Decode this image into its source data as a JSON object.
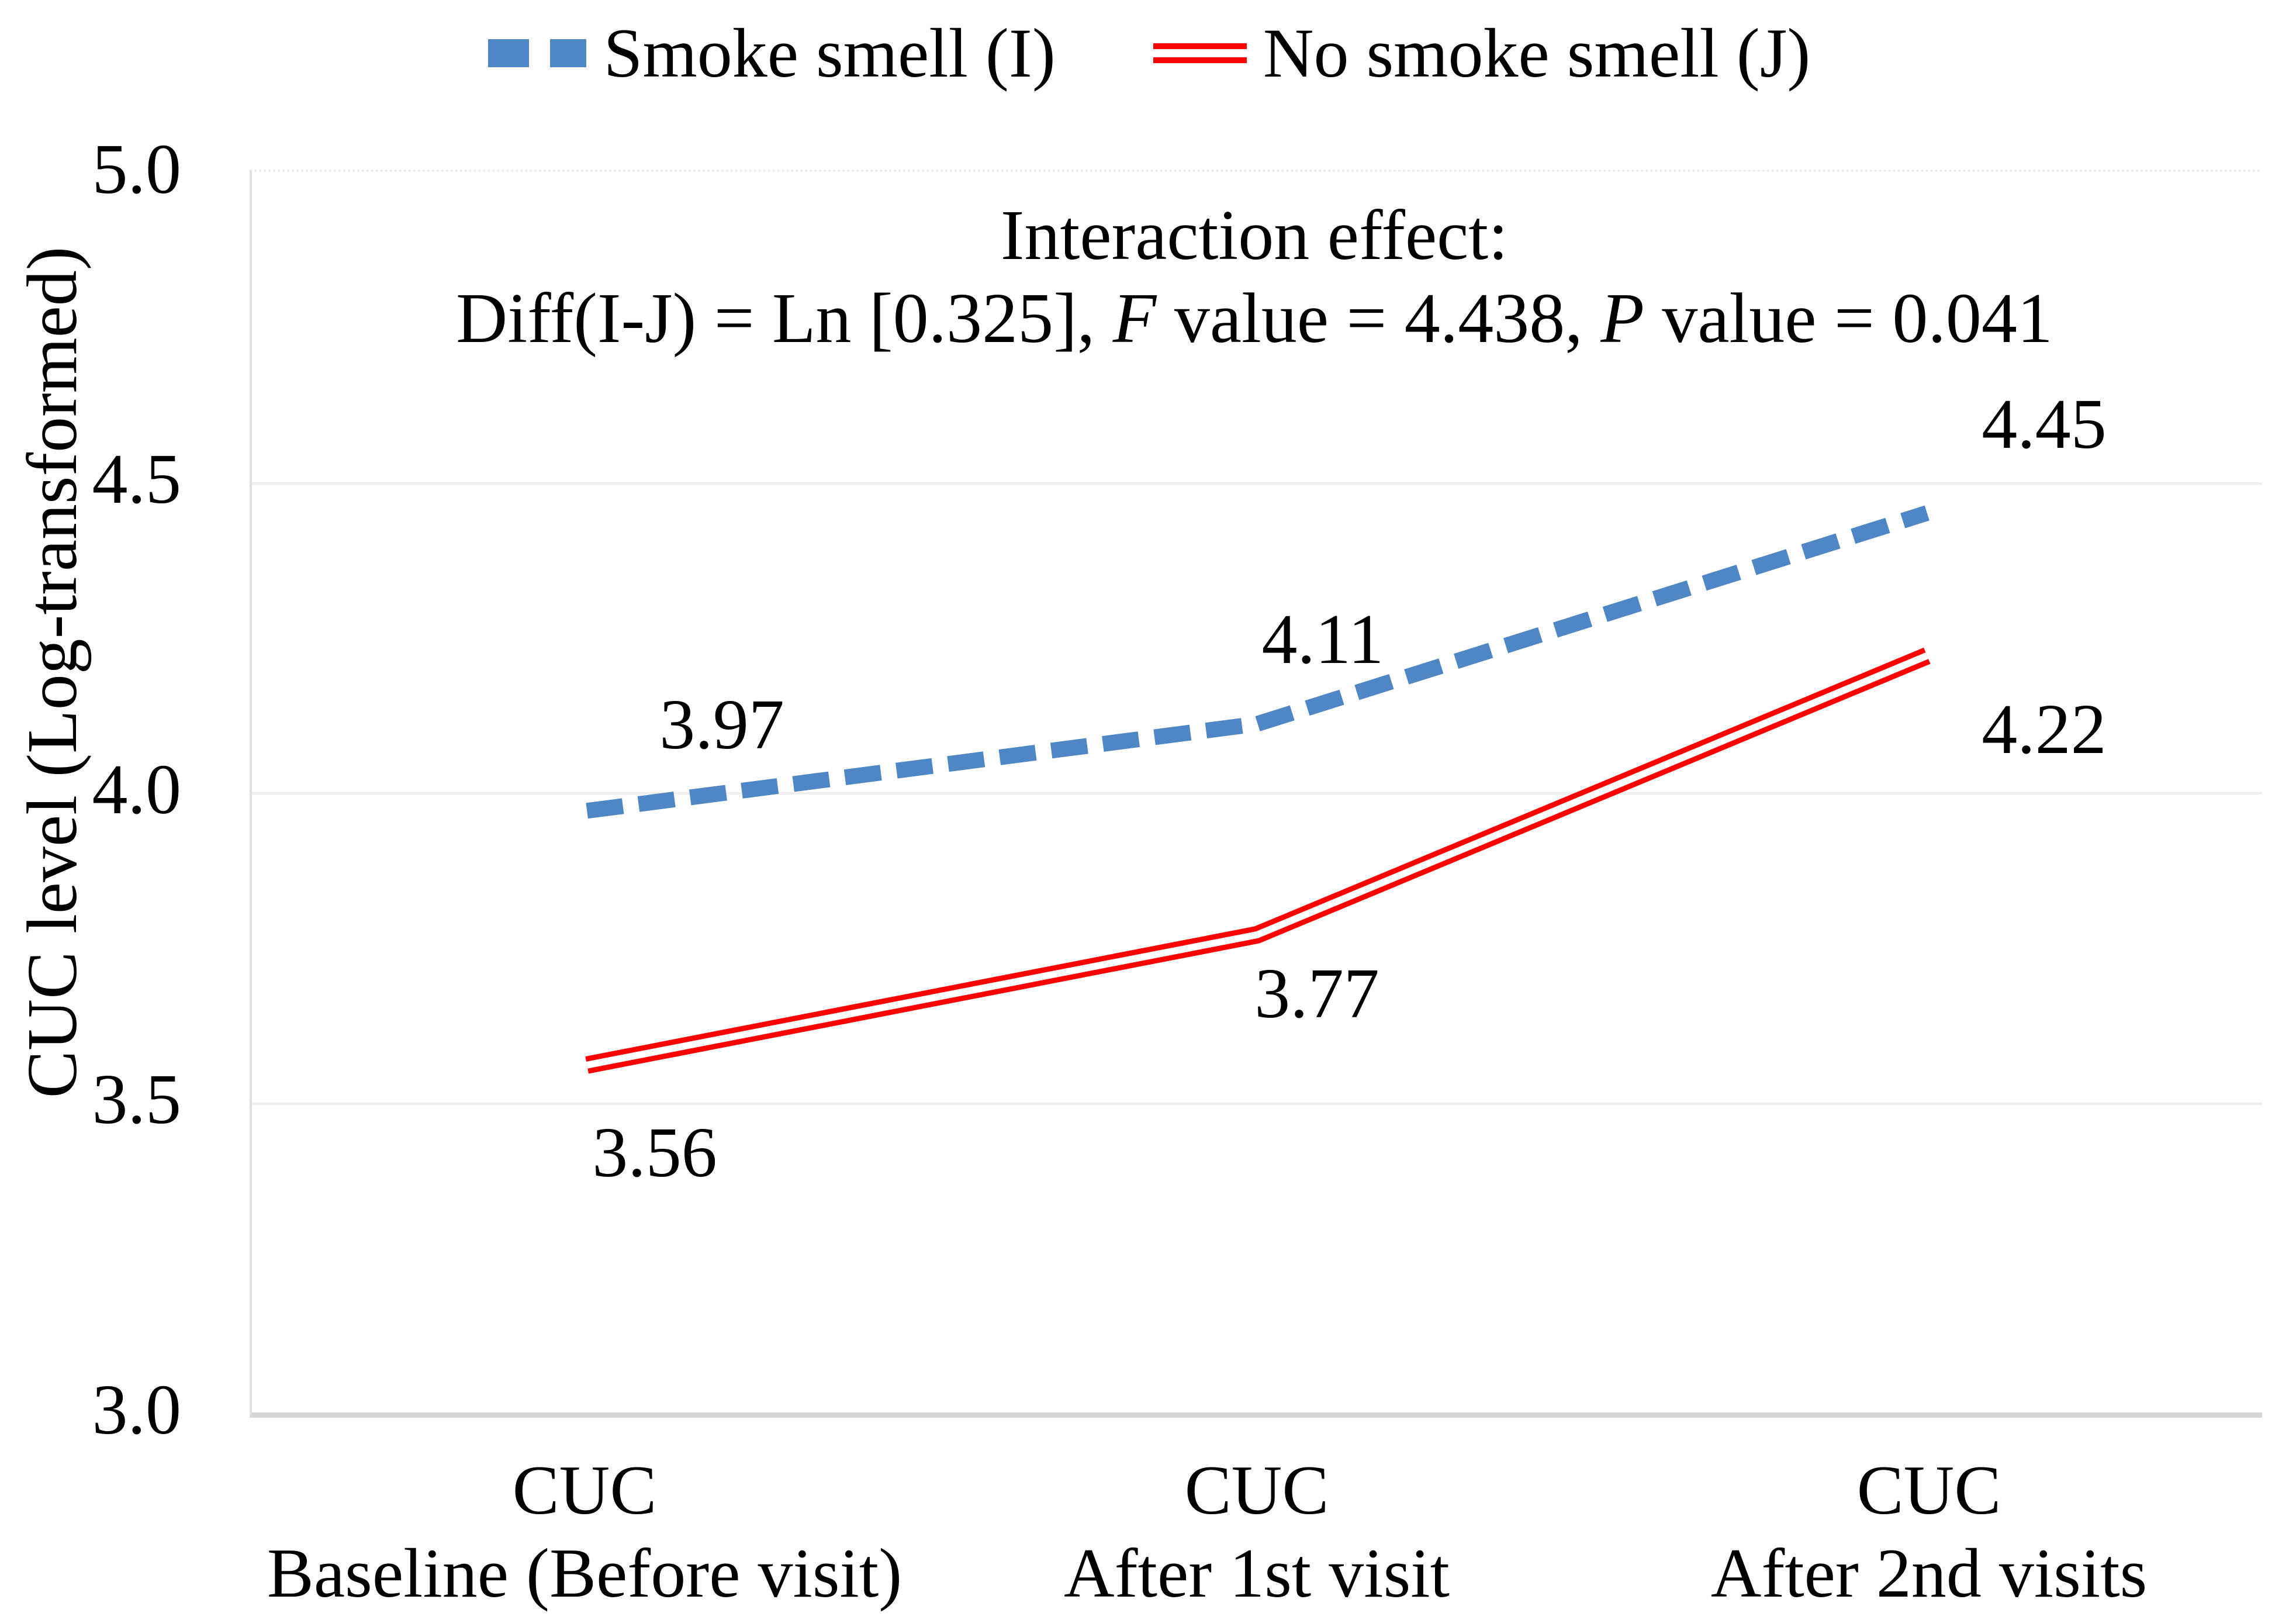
{
  "chart_data": {
    "type": "line",
    "title": "",
    "xlabel": "",
    "ylabel": "CUC level (Log-transformed)",
    "ylim": [
      3.0,
      5.0
    ],
    "grid": "horizontal gridlines at 3.5, 4.0, 4.5; light gray; legend at top center",
    "legend_position": "top-center",
    "categories": [
      {
        "line1": "CUC",
        "line2": "Baseline (Before visit)"
      },
      {
        "line1": "CUC",
        "line2": "After 1st visit"
      },
      {
        "line1": "CUC",
        "line2": "After 2nd visits"
      }
    ],
    "yticks": [
      {
        "value": 5.0,
        "label": "5.0"
      },
      {
        "value": 4.5,
        "label": "4.5"
      },
      {
        "value": 4.0,
        "label": "4.0"
      },
      {
        "value": 3.5,
        "label": "3.5"
      },
      {
        "value": 3.0,
        "label": "3.0"
      }
    ],
    "series": [
      {
        "name": "Smoke smell (I)",
        "values": [
          3.97,
          4.11,
          4.45
        ],
        "labels": [
          "3.97",
          "4.11",
          "4.45"
        ],
        "color": "#4E86C6",
        "line_style": "thick dashed"
      },
      {
        "name": "No smoke smell (J)",
        "values": [
          3.56,
          3.77,
          4.22
        ],
        "labels": [
          "3.56",
          "3.77",
          "4.22"
        ],
        "color": "#FF0000",
        "line_style": "double solid (red with white core)"
      }
    ],
    "annotation": {
      "line1": "Interaction effect:",
      "line2_parts": [
        "Diff(I-J) = Ln [0.325], ",
        "F",
        " value = 4.438, ",
        "P",
        " value = 0.041"
      ]
    }
  },
  "colors": {
    "smoke_blue": "#4E86C6",
    "no_smoke_red": "#FF0000",
    "gridline": "#EFEFEF",
    "axis_line": "#D6D6D6",
    "text": "#000000"
  }
}
